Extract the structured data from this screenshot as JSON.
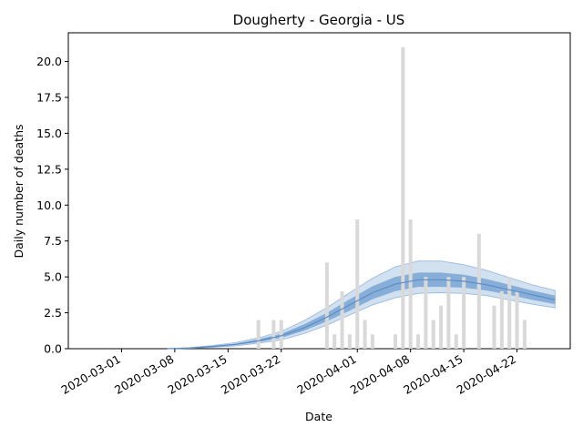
{
  "chart_data": {
    "type": "bar",
    "title": "Dougherty - Georgia - US",
    "xlabel": "Date",
    "ylabel": "Daily number of deaths",
    "ylim": [
      0,
      22
    ],
    "xlim": [
      "2020-02-23",
      "2020-04-29"
    ],
    "grid": false,
    "legend": "none",
    "colors": {
      "bars": "#d9d9d9",
      "band_outer": "#c7d9ec",
      "band_inner": "#7ea9d5",
      "line": "#5b8dc4"
    },
    "x_ticks": [
      "2020-03-01",
      "2020-03-08",
      "2020-03-15",
      "2020-03-22",
      "2020-04-01",
      "2020-04-08",
      "2020-04-15",
      "2020-04-22"
    ],
    "y_ticks": [
      "0.0",
      "2.5",
      "5.0",
      "7.5",
      "10.0",
      "12.5",
      "15.0",
      "17.5",
      "20.0"
    ],
    "bars": [
      {
        "date": "2020-03-19",
        "value": 2
      },
      {
        "date": "2020-03-21",
        "value": 2
      },
      {
        "date": "2020-03-22",
        "value": 2
      },
      {
        "date": "2020-03-28",
        "value": 6
      },
      {
        "date": "2020-03-29",
        "value": 1
      },
      {
        "date": "2020-03-30",
        "value": 4
      },
      {
        "date": "2020-03-31",
        "value": 1
      },
      {
        "date": "2020-04-01",
        "value": 9
      },
      {
        "date": "2020-04-02",
        "value": 2
      },
      {
        "date": "2020-04-03",
        "value": 1
      },
      {
        "date": "2020-04-06",
        "value": 1
      },
      {
        "date": "2020-04-07",
        "value": 21
      },
      {
        "date": "2020-04-08",
        "value": 9
      },
      {
        "date": "2020-04-09",
        "value": 1
      },
      {
        "date": "2020-04-10",
        "value": 5
      },
      {
        "date": "2020-04-11",
        "value": 2
      },
      {
        "date": "2020-04-12",
        "value": 3
      },
      {
        "date": "2020-04-13",
        "value": 5
      },
      {
        "date": "2020-04-14",
        "value": 1
      },
      {
        "date": "2020-04-15",
        "value": 5
      },
      {
        "date": "2020-04-17",
        "value": 8
      },
      {
        "date": "2020-04-19",
        "value": 3
      },
      {
        "date": "2020-04-20",
        "value": 4
      },
      {
        "date": "2020-04-21",
        "value": 5
      },
      {
        "date": "2020-04-22",
        "value": 4
      },
      {
        "date": "2020-04-23",
        "value": 2
      }
    ],
    "fit": [
      {
        "date": "2020-03-07",
        "mean": 0.0,
        "inner_lo": 0.0,
        "inner_hi": 0.0,
        "outer_lo": 0.0,
        "outer_hi": 0.0
      },
      {
        "date": "2020-03-10",
        "mean": 0.05,
        "inner_lo": 0.04,
        "inner_hi": 0.06,
        "outer_lo": 0.03,
        "outer_hi": 0.07
      },
      {
        "date": "2020-03-13",
        "mean": 0.15,
        "inner_lo": 0.12,
        "inner_hi": 0.18,
        "outer_lo": 0.1,
        "outer_hi": 0.22
      },
      {
        "date": "2020-03-16",
        "mean": 0.3,
        "inner_lo": 0.25,
        "inner_hi": 0.35,
        "outer_lo": 0.2,
        "outer_hi": 0.42
      },
      {
        "date": "2020-03-19",
        "mean": 0.55,
        "inner_lo": 0.45,
        "inner_hi": 0.65,
        "outer_lo": 0.38,
        "outer_hi": 0.75
      },
      {
        "date": "2020-03-22",
        "mean": 0.9,
        "inner_lo": 0.75,
        "inner_hi": 1.05,
        "outer_lo": 0.62,
        "outer_hi": 1.2
      },
      {
        "date": "2020-03-25",
        "mean": 1.45,
        "inner_lo": 1.25,
        "inner_hi": 1.7,
        "outer_lo": 1.05,
        "outer_hi": 1.95
      },
      {
        "date": "2020-03-28",
        "mean": 2.2,
        "inner_lo": 1.9,
        "inner_hi": 2.5,
        "outer_lo": 1.65,
        "outer_hi": 2.85
      },
      {
        "date": "2020-03-31",
        "mean": 3.05,
        "inner_lo": 2.65,
        "inner_hi": 3.45,
        "outer_lo": 2.35,
        "outer_hi": 3.9
      },
      {
        "date": "2020-04-03",
        "mean": 3.9,
        "inner_lo": 3.45,
        "inner_hi": 4.35,
        "outer_lo": 3.05,
        "outer_hi": 4.9
      },
      {
        "date": "2020-04-06",
        "mean": 4.5,
        "inner_lo": 4.0,
        "inner_hi": 5.0,
        "outer_lo": 3.55,
        "outer_hi": 5.7
      },
      {
        "date": "2020-04-09",
        "mean": 4.8,
        "inner_lo": 4.3,
        "inner_hi": 5.3,
        "outer_lo": 3.85,
        "outer_hi": 6.1
      },
      {
        "date": "2020-04-12",
        "mean": 4.8,
        "inner_lo": 4.3,
        "inner_hi": 5.3,
        "outer_lo": 3.9,
        "outer_hi": 6.1
      },
      {
        "date": "2020-04-15",
        "mean": 4.7,
        "inner_lo": 4.25,
        "inner_hi": 5.15,
        "outer_lo": 3.85,
        "outer_hi": 5.85
      },
      {
        "date": "2020-04-18",
        "mean": 4.45,
        "inner_lo": 4.05,
        "inner_hi": 4.85,
        "outer_lo": 3.7,
        "outer_hi": 5.45
      },
      {
        "date": "2020-04-21",
        "mean": 4.1,
        "inner_lo": 3.75,
        "inner_hi": 4.45,
        "outer_lo": 3.4,
        "outer_hi": 4.95
      },
      {
        "date": "2020-04-24",
        "mean": 3.75,
        "inner_lo": 3.4,
        "inner_hi": 4.05,
        "outer_lo": 3.1,
        "outer_hi": 4.45
      },
      {
        "date": "2020-04-27",
        "mean": 3.4,
        "inner_lo": 3.1,
        "inner_hi": 3.7,
        "outer_lo": 2.85,
        "outer_hi": 4.05
      }
    ]
  }
}
